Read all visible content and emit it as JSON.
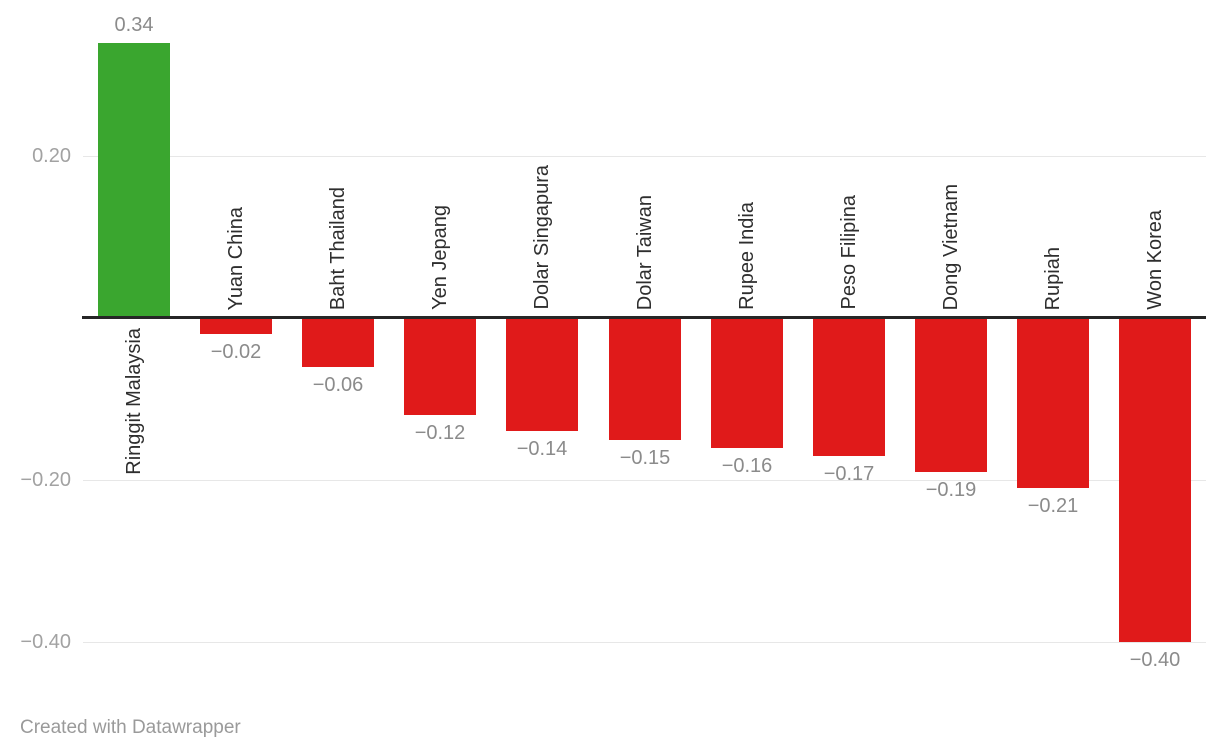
{
  "chart_data": {
    "type": "bar",
    "categories": [
      "Ringgit Malaysia",
      "Yuan China",
      "Baht Thailand",
      "Yen Jepang",
      "Dolar Singapura",
      "Dolar Taiwan",
      "Rupee India",
      "Peso Filipina",
      "Dong Vietnam",
      "Rupiah",
      "Won Korea"
    ],
    "values": [
      0.34,
      -0.02,
      -0.06,
      -0.12,
      -0.14,
      -0.15,
      -0.16,
      -0.17,
      -0.19,
      -0.21,
      -0.4
    ],
    "value_labels": [
      "0.34",
      "−0.02",
      "−0.06",
      "−0.12",
      "−0.14",
      "−0.15",
      "−0.16",
      "−0.17",
      "−0.19",
      "−0.21",
      "−0.40"
    ],
    "yticks": [
      0.2,
      -0.2,
      -0.4
    ],
    "ytick_labels": [
      "0.20",
      "−0.20",
      "−0.40"
    ],
    "ylim": [
      -0.45,
      0.39
    ],
    "grid": true,
    "legend": "none",
    "title": "",
    "xlabel": "",
    "ylabel": "",
    "colors": {
      "positive": "#3aa62f",
      "negative": "#e01a1a"
    }
  },
  "footer": {
    "credit": "Created with Datawrapper"
  }
}
